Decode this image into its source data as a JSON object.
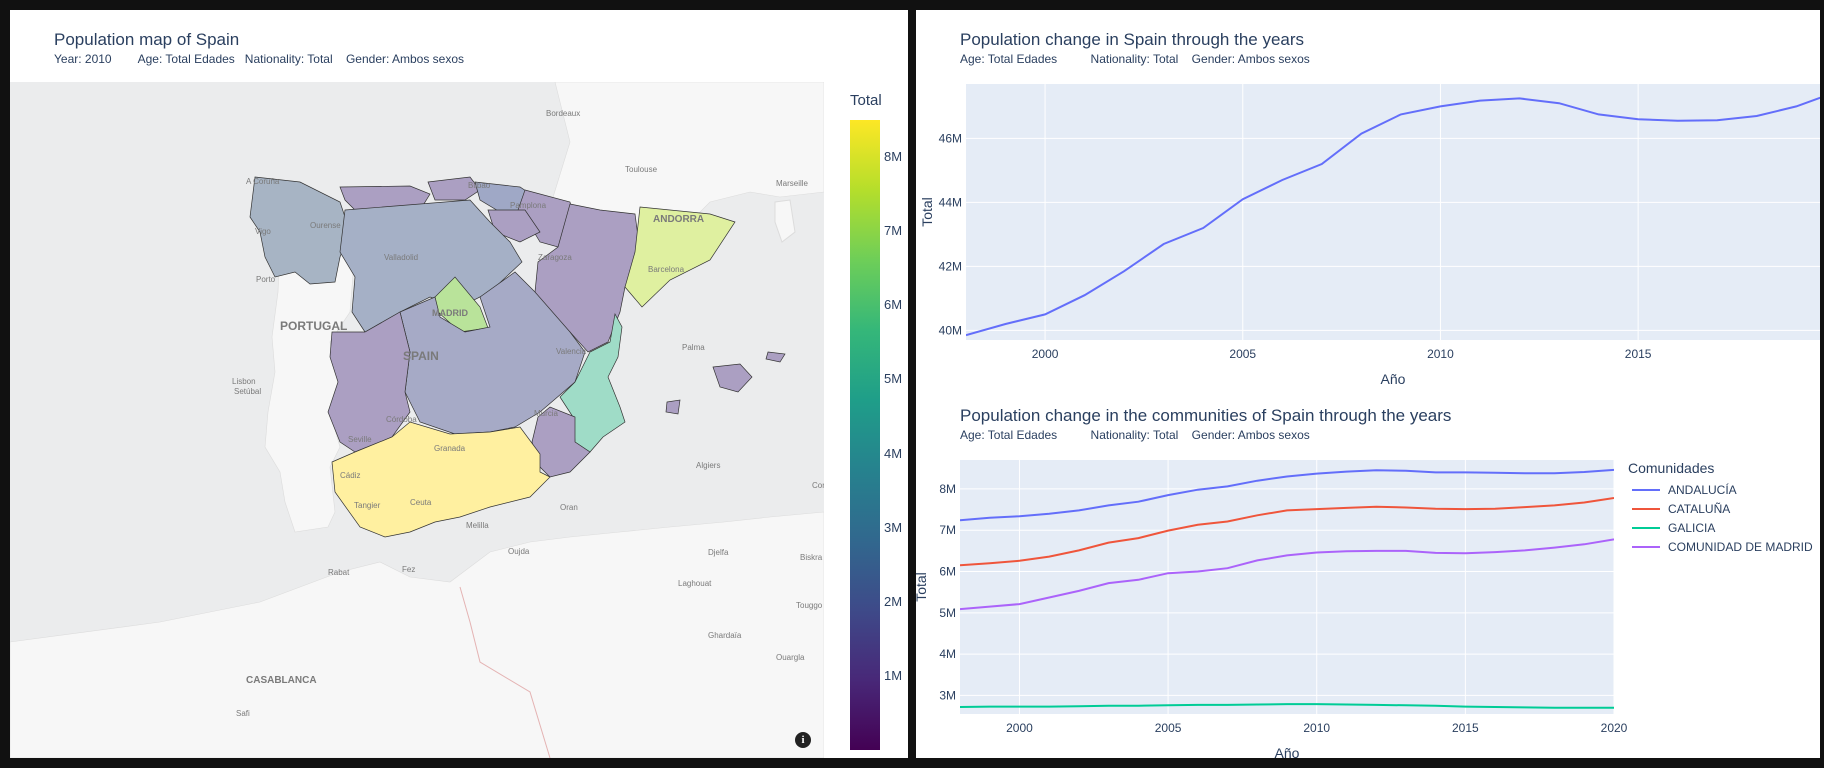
{
  "map_panel": {
    "title": "Population map of Spain",
    "subtitle": "Year: 2010        Age: Total Edades   Nationality: Total    Gender: Ambos sexos",
    "colorbar": {
      "title": "Total",
      "ticks": [
        "8M",
        "7M",
        "6M",
        "5M",
        "4M",
        "3M",
        "2M",
        "1M"
      ],
      "tick_values": [
        8,
        7,
        6,
        5,
        4,
        3,
        2,
        1
      ],
      "min": 0,
      "max": 8.5
    },
    "regions": [
      {
        "name": "Galicia",
        "color": "#a7b4c4"
      },
      {
        "name": "Asturias",
        "color": "#ab9fc2"
      },
      {
        "name": "Cantabria",
        "color": "#ab9fc2"
      },
      {
        "name": "Pais Vasco",
        "color": "#9fa8c6"
      },
      {
        "name": "Navarra",
        "color": "#ab9fc2"
      },
      {
        "name": "La Rioja",
        "color": "#ab9fc2"
      },
      {
        "name": "Aragon",
        "color": "#ab9fc2"
      },
      {
        "name": "Castilla y Leon",
        "color": "#a5b0c6"
      },
      {
        "name": "Cataluna",
        "color": "#dff0a0"
      },
      {
        "name": "Madrid",
        "color": "#b9e39a"
      },
      {
        "name": "Castilla-La Mancha",
        "color": "#a6aac6"
      },
      {
        "name": "Extremadura",
        "color": "#ab9fc2"
      },
      {
        "name": "Valencia",
        "color": "#9fdcc7"
      },
      {
        "name": "Murcia",
        "color": "#ab9fc2"
      },
      {
        "name": "Andalucia",
        "color": "#fff0a0"
      },
      {
        "name": "Baleares",
        "color": "#ab9fc2"
      }
    ],
    "basemap_labels": {
      "portugal": "PORTUGAL",
      "spain": "SPAIN",
      "madrid": "MADRID",
      "andorra": "ANDORRA",
      "casablanca": "CASABLANCA",
      "bordeaux": "Bordeaux",
      "toulouse": "Toulouse",
      "marseille": "Marseille",
      "a_coruna": "A Coruña",
      "vigo": "Vigo",
      "ourense": "Ourense",
      "porto": "Porto",
      "lisbon": "Lisbon",
      "setubal": "Setúbal",
      "valladolid": "Valladolid",
      "zaragoza": "Zaragoza",
      "pamplona": "Pamplona",
      "bilbao": "Bilbao",
      "barcelona": "Barcelona",
      "valencia": "Valencia",
      "palma": "Palma",
      "murcia": "Murcia",
      "cordoba": "Córdoba",
      "seville": "Seville",
      "granada": "Granada",
      "cadiz": "Cádiz",
      "tangier": "Tangier",
      "ceuta": "Ceuta",
      "melilla": "Melilla",
      "oujda": "Oujda",
      "oran": "Oran",
      "algiers": "Algiers",
      "djelfa": "Djelfa",
      "laghouat": "Laghouat",
      "ghardaia": "Ghardaïa",
      "ouargla": "Ouargla",
      "fez": "Fez",
      "rabat": "Rabat",
      "safi": "Safi",
      "biskra": "Biskra",
      "touggourt": "Touggo",
      "con": "Con"
    },
    "info_glyph": "i"
  },
  "chart_data": [
    {
      "type": "line",
      "title": "Population change in Spain through the years",
      "subtitle": "Age: Total Edades          Nationality: Total    Gender: Ambos sexos",
      "xlabel": "Año",
      "ylabel": "Total",
      "xlim": [
        1998,
        2019.6
      ],
      "ylim": [
        39.7,
        47.7
      ],
      "x_ticks": [
        2000,
        2005,
        2010,
        2015
      ],
      "y_ticks": [
        40,
        42,
        44,
        46
      ],
      "y_tick_labels": [
        "40M",
        "42M",
        "44M",
        "46M"
      ],
      "grid": true,
      "series": [
        {
          "color": "#636efa",
          "x": [
            1998,
            1999,
            2000,
            2001,
            2002,
            2003,
            2004,
            2005,
            2006,
            2007,
            2008,
            2009,
            2010,
            2011,
            2012,
            2013,
            2014,
            2015,
            2016,
            2017,
            2018,
            2019,
            2020
          ],
          "values": [
            39.85,
            40.2,
            40.5,
            41.1,
            41.85,
            42.7,
            43.2,
            44.1,
            44.7,
            45.2,
            46.15,
            46.75,
            47.0,
            47.18,
            47.25,
            47.1,
            46.75,
            46.6,
            46.55,
            46.57,
            46.7,
            47.0,
            47.45
          ]
        }
      ]
    },
    {
      "type": "line",
      "title": "Population change in the communities of Spain through the years",
      "subtitle": "Age: Total Edades          Nationality: Total    Gender: Ambos sexos",
      "xlabel": "Año",
      "ylabel": "Total",
      "xlim": [
        1998,
        2020
      ],
      "ylim": [
        2.55,
        8.7
      ],
      "x_ticks": [
        2000,
        2005,
        2010,
        2015,
        2020
      ],
      "y_ticks": [
        3,
        4,
        5,
        6,
        7,
        8
      ],
      "y_tick_labels": [
        "3M",
        "4M",
        "5M",
        "6M",
        "7M",
        "8M"
      ],
      "grid": true,
      "legend_title": "Comunidades",
      "legend_position": "right",
      "series": [
        {
          "name": "ANDALUCÍA",
          "color": "#636efa",
          "x": [
            1998,
            1999,
            2000,
            2001,
            2002,
            2003,
            2004,
            2005,
            2006,
            2007,
            2008,
            2009,
            2010,
            2011,
            2012,
            2013,
            2014,
            2015,
            2016,
            2017,
            2018,
            2019,
            2020
          ],
          "values": [
            7.24,
            7.3,
            7.34,
            7.4,
            7.48,
            7.6,
            7.69,
            7.85,
            7.98,
            8.06,
            8.2,
            8.3,
            8.37,
            8.42,
            8.45,
            8.44,
            8.4,
            8.4,
            8.39,
            8.38,
            8.38,
            8.41,
            8.46
          ]
        },
        {
          "name": "CATALUÑA",
          "color": "#ef553b",
          "x": [
            1998,
            1999,
            2000,
            2001,
            2002,
            2003,
            2004,
            2005,
            2006,
            2007,
            2008,
            2009,
            2010,
            2011,
            2012,
            2013,
            2014,
            2015,
            2016,
            2017,
            2018,
            2019,
            2020
          ],
          "values": [
            6.15,
            6.2,
            6.26,
            6.36,
            6.51,
            6.7,
            6.81,
            6.99,
            7.13,
            7.21,
            7.36,
            7.48,
            7.51,
            7.54,
            7.57,
            7.55,
            7.52,
            7.51,
            7.52,
            7.56,
            7.6,
            7.67,
            7.78
          ]
        },
        {
          "name": "GALICIA",
          "color": "#00cc96",
          "x": [
            1998,
            1999,
            2000,
            2001,
            2002,
            2003,
            2004,
            2005,
            2006,
            2007,
            2008,
            2009,
            2010,
            2011,
            2012,
            2013,
            2014,
            2015,
            2016,
            2017,
            2018,
            2019,
            2020
          ],
          "values": [
            2.72,
            2.73,
            2.73,
            2.73,
            2.74,
            2.75,
            2.75,
            2.76,
            2.77,
            2.77,
            2.78,
            2.79,
            2.79,
            2.78,
            2.77,
            2.76,
            2.75,
            2.73,
            2.72,
            2.71,
            2.7,
            2.7,
            2.7
          ]
        },
        {
          "name": "COMUNIDAD DE MADRID",
          "color": "#ab63fa",
          "x": [
            1998,
            1999,
            2000,
            2001,
            2002,
            2003,
            2004,
            2005,
            2006,
            2007,
            2008,
            2009,
            2010,
            2011,
            2012,
            2013,
            2014,
            2015,
            2016,
            2017,
            2018,
            2019,
            2020
          ],
          "values": [
            5.09,
            5.15,
            5.21,
            5.37,
            5.53,
            5.72,
            5.8,
            5.96,
            6.0,
            6.08,
            6.27,
            6.39,
            6.46,
            6.49,
            6.5,
            6.5,
            6.45,
            6.44,
            6.47,
            6.51,
            6.58,
            6.66,
            6.78
          ]
        }
      ]
    }
  ]
}
